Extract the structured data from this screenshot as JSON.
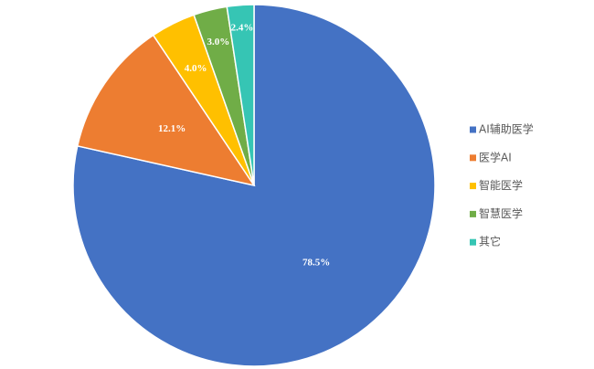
{
  "chart_data": {
    "type": "pie",
    "categories": [
      "AI辅助医学",
      "医学AI",
      "智能医学",
      "智慧医学",
      "其它"
    ],
    "values": [
      78.5,
      12.1,
      4.0,
      3.0,
      2.4
    ],
    "value_labels": [
      "78.5%",
      "12.1%",
      "4.0%",
      "3.0%",
      "2.4%"
    ],
    "colors": [
      "#4472c4",
      "#ed7d31",
      "#ffc000",
      "#70ad47",
      "#36c5b4"
    ],
    "legend": "right"
  }
}
